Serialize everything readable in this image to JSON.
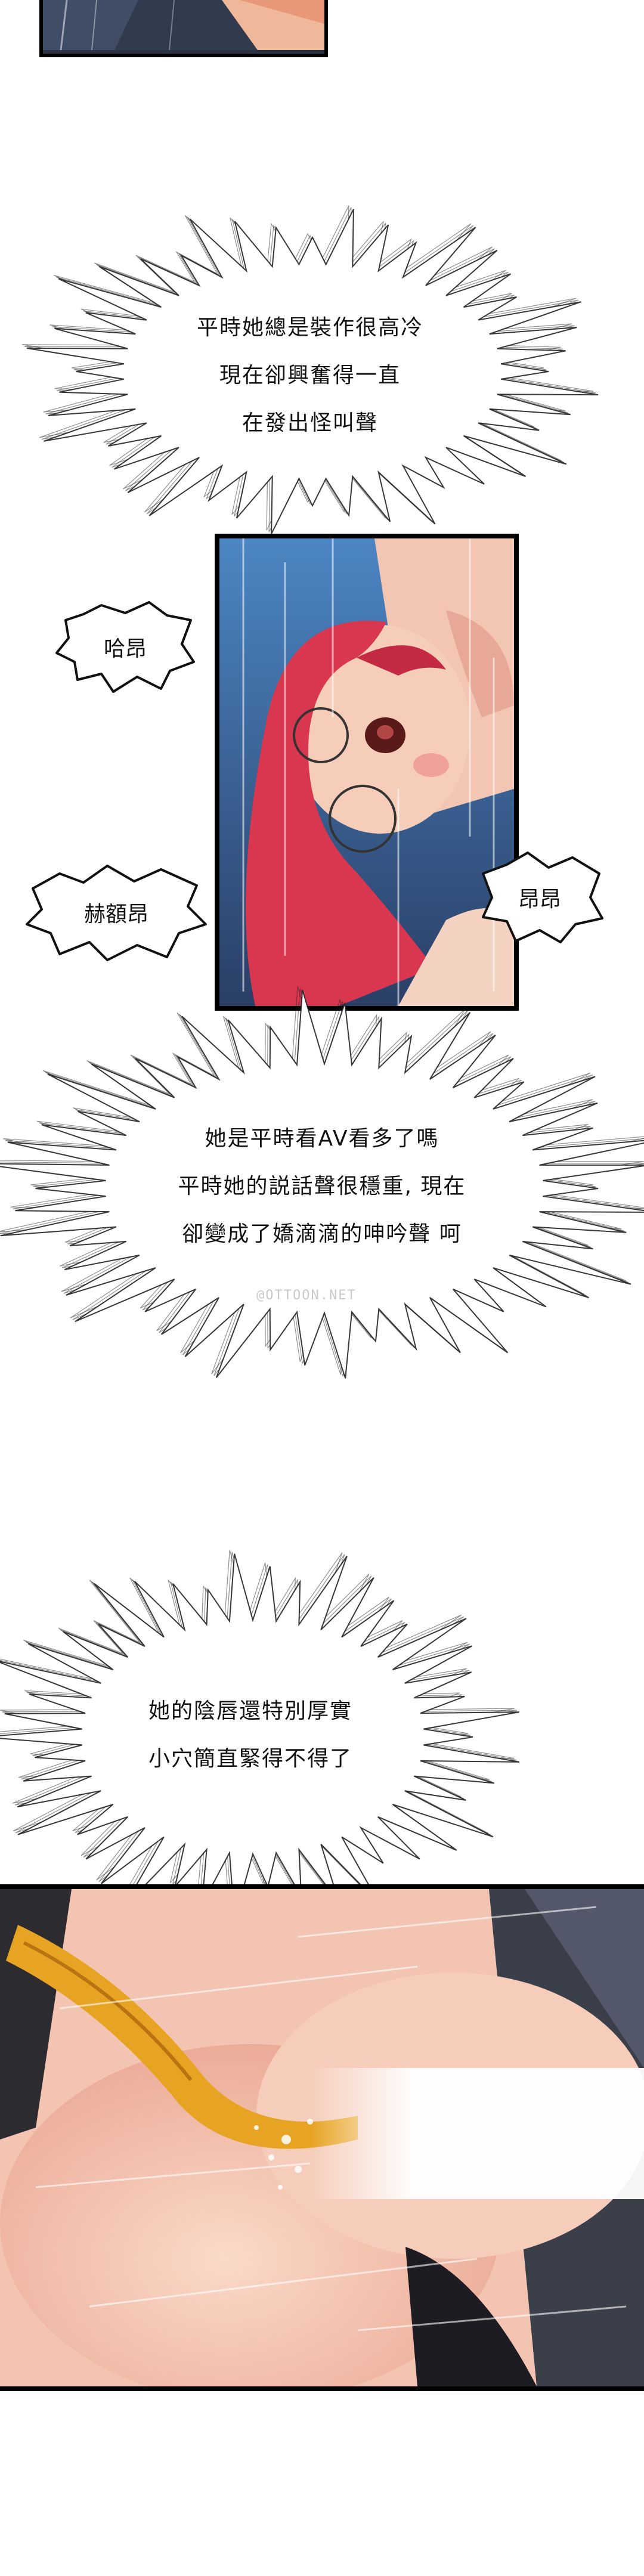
{
  "captions": {
    "c1": [
      "平時她總是裝作很高冷",
      "現在卻興奮得一直",
      "在發出怪叫聲"
    ],
    "c2": [
      "她是平時看AV看多了嗎",
      "平時她的説話聲很穩重, 現在",
      "卻變成了嬌滴滴的呻吟聲 呵"
    ],
    "c3": [
      "她的陰唇還特別厚實",
      "小穴簡直緊得不得了"
    ]
  },
  "sfx": {
    "left_top": "哈昂",
    "left_bottom": "赫額昂",
    "right": "昂昂"
  },
  "watermark": "@OTTOON.NET",
  "colors": {
    "panel_border": "#000000",
    "hair": "#d9364f",
    "skin": "#f6c9b8",
    "sky": "#6fa4d2",
    "yellow": "#e7a322"
  }
}
